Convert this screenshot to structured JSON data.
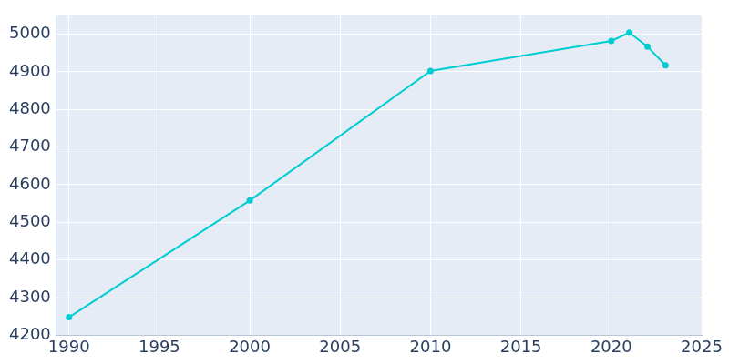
{
  "chart_data": {
    "type": "line",
    "x": [
      1990,
      2000,
      2010,
      2020,
      2021,
      2022,
      2023
    ],
    "values": [
      4248,
      4558,
      4902,
      4982,
      5004,
      4967,
      4917
    ],
    "color": "#00cdd1",
    "marker": "circle",
    "xlim": [
      1989.3,
      2025
    ],
    "xticks": [
      1990,
      1995,
      2000,
      2005,
      2010,
      2015,
      2020,
      2025
    ],
    "ylim": [
      4200,
      5050
    ],
    "yticks": [
      4200,
      4300,
      4400,
      4500,
      4600,
      4700,
      4800,
      4900,
      5000
    ],
    "grid": true
  }
}
